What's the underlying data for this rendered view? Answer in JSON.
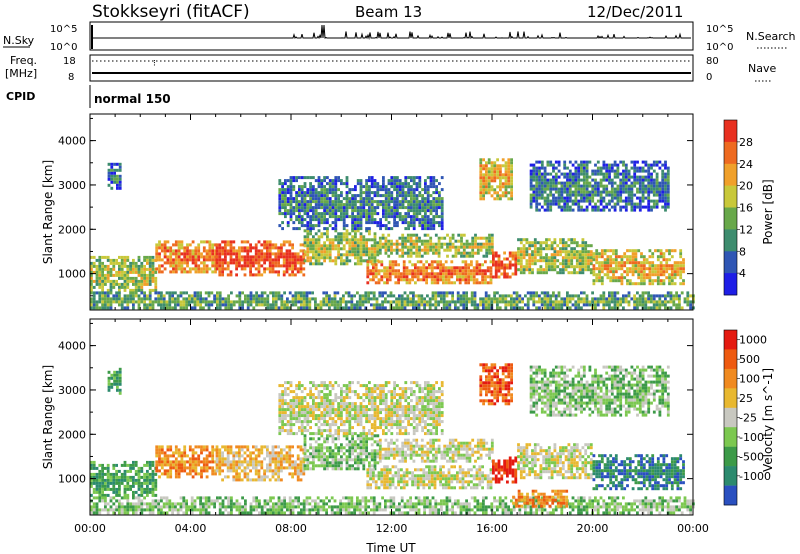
{
  "header": {
    "station": "Stokkseyri (fitACF)",
    "beam": "Beam 13",
    "date": "12/Dec/2011"
  },
  "top_panels": {
    "nsky_label": "N.Sky",
    "nsky_hi": "10^5",
    "nsky_lo": "10^0",
    "nsearch_label": "N.Search",
    "freq_label_1": "Freq.",
    "freq_label_2": "[MHz]",
    "freq_hi": "18",
    "freq_lo": "8",
    "nave_hi": "80",
    "nave_lo": "0",
    "nave_label": "Nave",
    "cpid_label": "CPID",
    "cpid_value": "normal 150"
  },
  "chart_data": [
    {
      "type": "heatmap",
      "name": "power",
      "xlabel": "",
      "ylabel": "Slant Range [km]",
      "xlim": [
        0,
        24
      ],
      "ylim": [
        180,
        4600
      ],
      "yticks": [
        "1000",
        "2000",
        "3000",
        "4000"
      ],
      "colorbar": {
        "label": "Power [dB]",
        "range": [
          0,
          32
        ],
        "ticks": [
          "4",
          "8",
          "12",
          "16",
          "20",
          "24",
          "28"
        ],
        "colors": [
          "#1e1ee6",
          "#2f56b4",
          "#3d8c6e",
          "#68a84a",
          "#c8c83a",
          "#f0a02a",
          "#ee6a20",
          "#e83020"
        ]
      },
      "regions": [
        {
          "t": [
            0.0,
            2.6
          ],
          "r": [
            620,
            1400
          ],
          "v": 14
        },
        {
          "t": [
            2.6,
            5.0
          ],
          "r": [
            1050,
            1750
          ],
          "v": 20
        },
        {
          "t": [
            5.0,
            8.5
          ],
          "r": [
            1000,
            1750
          ],
          "v": 26
        },
        {
          "t": [
            8.5,
            11.5
          ],
          "r": [
            1200,
            2000
          ],
          "v": 14
        },
        {
          "t": [
            11.0,
            16.0
          ],
          "r": [
            800,
            1300
          ],
          "v": 22
        },
        {
          "t": [
            11.5,
            16.0
          ],
          "r": [
            1400,
            1900
          ],
          "v": 14
        },
        {
          "t": [
            16.0,
            17.0
          ],
          "r": [
            900,
            1500
          ],
          "v": 26
        },
        {
          "t": [
            17.0,
            20.0
          ],
          "r": [
            1000,
            1800
          ],
          "v": 12
        },
        {
          "t": [
            20.0,
            23.6
          ],
          "r": [
            800,
            1550
          ],
          "v": 18
        },
        {
          "t": [
            0.0,
            24.0
          ],
          "r": [
            200,
            600
          ],
          "v": 10
        },
        {
          "t": [
            17.5,
            23.0
          ],
          "r": [
            2400,
            3550
          ],
          "v": 6
        },
        {
          "t": [
            0.7,
            1.2
          ],
          "r": [
            2900,
            3500
          ],
          "v": 6
        },
        {
          "t": [
            7.5,
            14.0
          ],
          "r": [
            2000,
            3200
          ],
          "v": 5
        },
        {
          "t": [
            15.5,
            16.8
          ],
          "r": [
            2700,
            3600
          ],
          "v": 18
        }
      ]
    },
    {
      "type": "heatmap",
      "name": "velocity",
      "xlabel": "Time UT",
      "ylabel": "Slant Range [km]",
      "xlim": [
        0,
        24
      ],
      "ylim": [
        180,
        4600
      ],
      "xticks": [
        "00:00",
        "04:00",
        "08:00",
        "12:00",
        "16:00",
        "20:00",
        "00:00"
      ],
      "yticks": [
        "1000",
        "2000",
        "3000",
        "4000"
      ],
      "colorbar": {
        "label": "Velocity [m s^-1]",
        "ticks": [
          "1000",
          "500",
          "100",
          "25",
          "-25",
          "-100",
          "-500",
          "-1000"
        ],
        "colors": [
          "#2a50c0",
          "#2c8a6e",
          "#3c9a48",
          "#7cc850",
          "#c8c8c0",
          "#e8b830",
          "#f08a20",
          "#ee5a10",
          "#e41a10"
        ]
      },
      "regions": [
        {
          "t": [
            0.0,
            2.6
          ],
          "r": [
            620,
            1400
          ],
          "v": 2
        },
        {
          "t": [
            2.6,
            5.0
          ],
          "r": [
            1050,
            1750
          ],
          "v": 6
        },
        {
          "t": [
            5.0,
            8.5
          ],
          "r": [
            1000,
            1750
          ],
          "v": 5
        },
        {
          "t": [
            8.5,
            11.5
          ],
          "r": [
            1200,
            2000
          ],
          "v": 3
        },
        {
          "t": [
            11.0,
            16.0
          ],
          "r": [
            800,
            1300
          ],
          "v": 4
        },
        {
          "t": [
            11.5,
            16.0
          ],
          "r": [
            1400,
            1900
          ],
          "v": 4
        },
        {
          "t": [
            16.0,
            17.0
          ],
          "r": [
            900,
            1500
          ],
          "v": 8
        },
        {
          "t": [
            17.0,
            20.0
          ],
          "r": [
            1000,
            1800
          ],
          "v": 4
        },
        {
          "t": [
            20.0,
            23.6
          ],
          "r": [
            800,
            1550
          ],
          "v": 1
        },
        {
          "t": [
            0.0,
            24.0
          ],
          "r": [
            200,
            600
          ],
          "v": 3
        },
        {
          "t": [
            16.8,
            19.0
          ],
          "r": [
            350,
            750
          ],
          "v": 6
        },
        {
          "t": [
            17.5,
            23.0
          ],
          "r": [
            2400,
            3550
          ],
          "v": 3
        },
        {
          "t": [
            0.7,
            1.2
          ],
          "r": [
            2900,
            3500
          ],
          "v": 2
        },
        {
          "t": [
            7.5,
            14.0
          ],
          "r": [
            2000,
            3200
          ],
          "v": 4
        },
        {
          "t": [
            15.5,
            16.8
          ],
          "r": [
            2700,
            3600
          ],
          "v": 7
        }
      ]
    }
  ]
}
